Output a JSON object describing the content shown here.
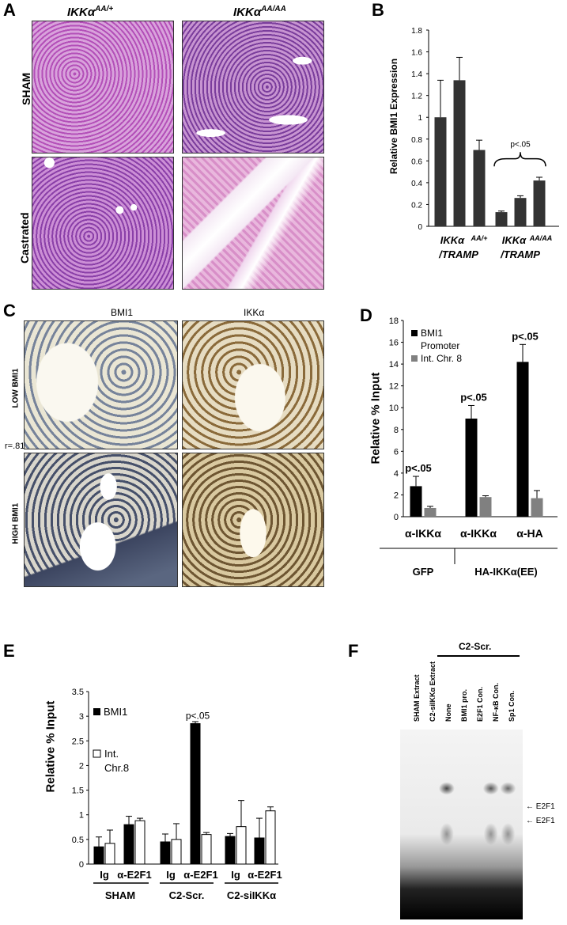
{
  "panels": {
    "A": {
      "label": "A",
      "col_headers": [
        "IKKα^AA/+",
        "IKKα^AA/AA"
      ],
      "col_base": [
        "IKKα",
        "IKKα"
      ],
      "col_sup": [
        "AA/+",
        "AA/AA"
      ],
      "row_labels": [
        "SHAM",
        "Castrated"
      ]
    },
    "B": {
      "label": "B",
      "ylabel": "Relative BMI1 Expression",
      "significance": "p<.05",
      "group_labels_line1": [
        "IKKα",
        "IKKα"
      ],
      "group_labels_sup": [
        "AA/+",
        "AA/AA"
      ],
      "group_labels_line2": [
        "/TRAMP",
        "/TRAMP"
      ]
    },
    "C": {
      "label": "C",
      "col_headers": [
        "BMI1",
        "IKKα"
      ],
      "row_labels": [
        "LOW BMI1",
        "HIGH BMI1"
      ],
      "correlation": "r=.81"
    },
    "D": {
      "label": "D",
      "ylabel": "Relative % Input",
      "legend": [
        "BMI1",
        "Promoter",
        "Int. Chr. 8"
      ],
      "xlabels": [
        "α-IKKα",
        "α-IKKα",
        "α-HA"
      ],
      "group_labels": [
        "GFP",
        "HA-IKKα(EE)"
      ],
      "significance": [
        "p<.05",
        "p<.05",
        "p<.05"
      ]
    },
    "E": {
      "label": "E",
      "ylabel": "Relative % Input",
      "legend": [
        "BMI1",
        "Int.",
        "Chr.8"
      ],
      "xlabels": [
        "Ig",
        "α-E2F1",
        "Ig",
        "α-E2F1",
        "Ig",
        "α-E2F1"
      ],
      "group_labels": [
        "SHAM",
        "C2-Scr.",
        "C2-siIKKα"
      ],
      "significance": "p<.05"
    },
    "F": {
      "label": "F",
      "top_label": "C2-Scr.",
      "lanes": [
        "SHAM Extract",
        "C2-siIKKα Extract",
        "None",
        "BMI1 pro.",
        "E2F1 Con.",
        "NF-κB Con.",
        "Sp1 Con."
      ],
      "arrows": [
        "E2F1",
        "E2F1"
      ]
    }
  },
  "chart_data": [
    {
      "type": "bar",
      "panel": "B",
      "ylabel": "Relative BMI1 Expression",
      "ylim": [
        0,
        1.8
      ],
      "yticks": [
        0,
        0.2,
        0.4,
        0.6,
        0.8,
        1,
        1.2,
        1.4,
        1.6,
        1.8
      ],
      "groups": [
        "IKKα AA/+ /TRAMP",
        "IKKα AA/AA /TRAMP"
      ],
      "values": [
        1.0,
        1.34,
        0.7,
        0.13,
        0.26,
        0.42
      ],
      "errors": [
        0.34,
        0.21,
        0.09,
        0.01,
        0.02,
        0.03
      ]
    },
    {
      "type": "bar",
      "panel": "D",
      "ylabel": "Relative % Input",
      "ylim": [
        0,
        18
      ],
      "yticks": [
        0,
        2,
        4,
        6,
        8,
        10,
        12,
        14,
        16,
        18
      ],
      "categories": [
        "α-IKKα (GFP)",
        "α-IKKα (HA-IKKα(EE))",
        "α-HA (HA-IKKα(EE))"
      ],
      "series": [
        {
          "name": "BMI1 Promoter",
          "values": [
            2.8,
            9.0,
            14.2
          ],
          "errors": [
            0.9,
            1.2,
            1.6
          ],
          "color": "#000000"
        },
        {
          "name": "Int. Chr. 8",
          "values": [
            0.8,
            1.8,
            1.7
          ],
          "errors": [
            0.15,
            0.12,
            0.7
          ],
          "color": "#808080"
        }
      ]
    },
    {
      "type": "bar",
      "panel": "E",
      "ylabel": "Relative % Input",
      "ylim": [
        0,
        3.5
      ],
      "yticks": [
        0,
        0.5,
        1,
        1.5,
        2,
        2.5,
        3,
        3.5
      ],
      "categories": [
        "Ig SHAM",
        "α-E2F1 SHAM",
        "Ig C2-Scr.",
        "α-E2F1 C2-Scr.",
        "Ig C2-siIKKα",
        "α-E2F1 C2-siIKKα"
      ],
      "series": [
        {
          "name": "BMI1",
          "values": [
            0.35,
            0.8,
            0.45,
            2.85,
            0.56,
            0.53
          ],
          "errors": [
            0.2,
            0.17,
            0.16,
            0.04,
            0.06,
            0.4
          ],
          "color": "#000000"
        },
        {
          "name": "Int. Chr.8",
          "values": [
            0.42,
            0.88,
            0.5,
            0.6,
            0.76,
            1.08
          ],
          "errors": [
            0.27,
            0.05,
            0.32,
            0.04,
            0.53,
            0.08
          ],
          "color": "#ffffff"
        }
      ]
    }
  ]
}
